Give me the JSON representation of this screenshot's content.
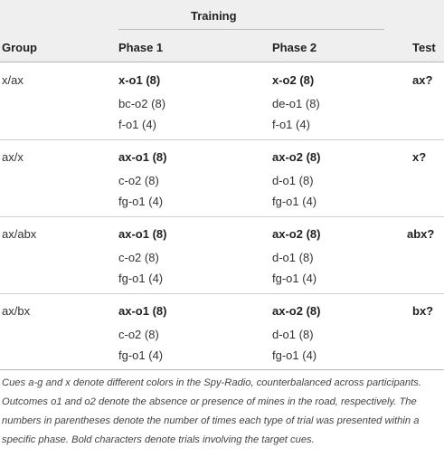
{
  "header": {
    "training": "Training",
    "group": "Group",
    "phase1": "Phase 1",
    "phase2": "Phase 2",
    "test": "Test"
  },
  "rows": [
    {
      "group": "x/ax",
      "phase1": [
        "x-o1 (8)",
        "bc-o2 (8)",
        "f-o1 (4)"
      ],
      "phase2": [
        "x-o2 (8)",
        "de-o1 (8)",
        "f-o1 (4)"
      ],
      "test": "ax?"
    },
    {
      "group": "ax/x",
      "phase1": [
        "ax-o1 (8)",
        "c-o2 (8)",
        "fg-o1 (4)"
      ],
      "phase2": [
        "ax-o2 (8)",
        "d-o1 (8)",
        "fg-o1 (4)"
      ],
      "test": "x?"
    },
    {
      "group": "ax/abx",
      "phase1": [
        "ax-o1 (8)",
        "c-o2 (8)",
        "fg-o1 (4)"
      ],
      "phase2": [
        "ax-o2 (8)",
        "d-o1 (8)",
        "fg-o1 (4)"
      ],
      "test": "abx?"
    },
    {
      "group": "ax/bx",
      "phase1": [
        "ax-o1 (8)",
        "c-o2 (8)",
        "fg-o1 (4)"
      ],
      "phase2": [
        "ax-o2 (8)",
        "d-o1 (8)",
        "fg-o1 (4)"
      ],
      "test": "bx?"
    }
  ],
  "footnote": "Cues a-g and x denote different colors in the Spy-Radio, counterbalanced across participants. Outcomes o1 and o2 denote the absence or presence of mines in the road, respectively. The numbers in parentheses denote the number of times each type of trial was presented within a specific phase. Bold characters denote trials involving the target cues.",
  "colors": {
    "header_bg": "#efefef",
    "rule": "#cfcfcf",
    "text": "#2b2b2b"
  }
}
